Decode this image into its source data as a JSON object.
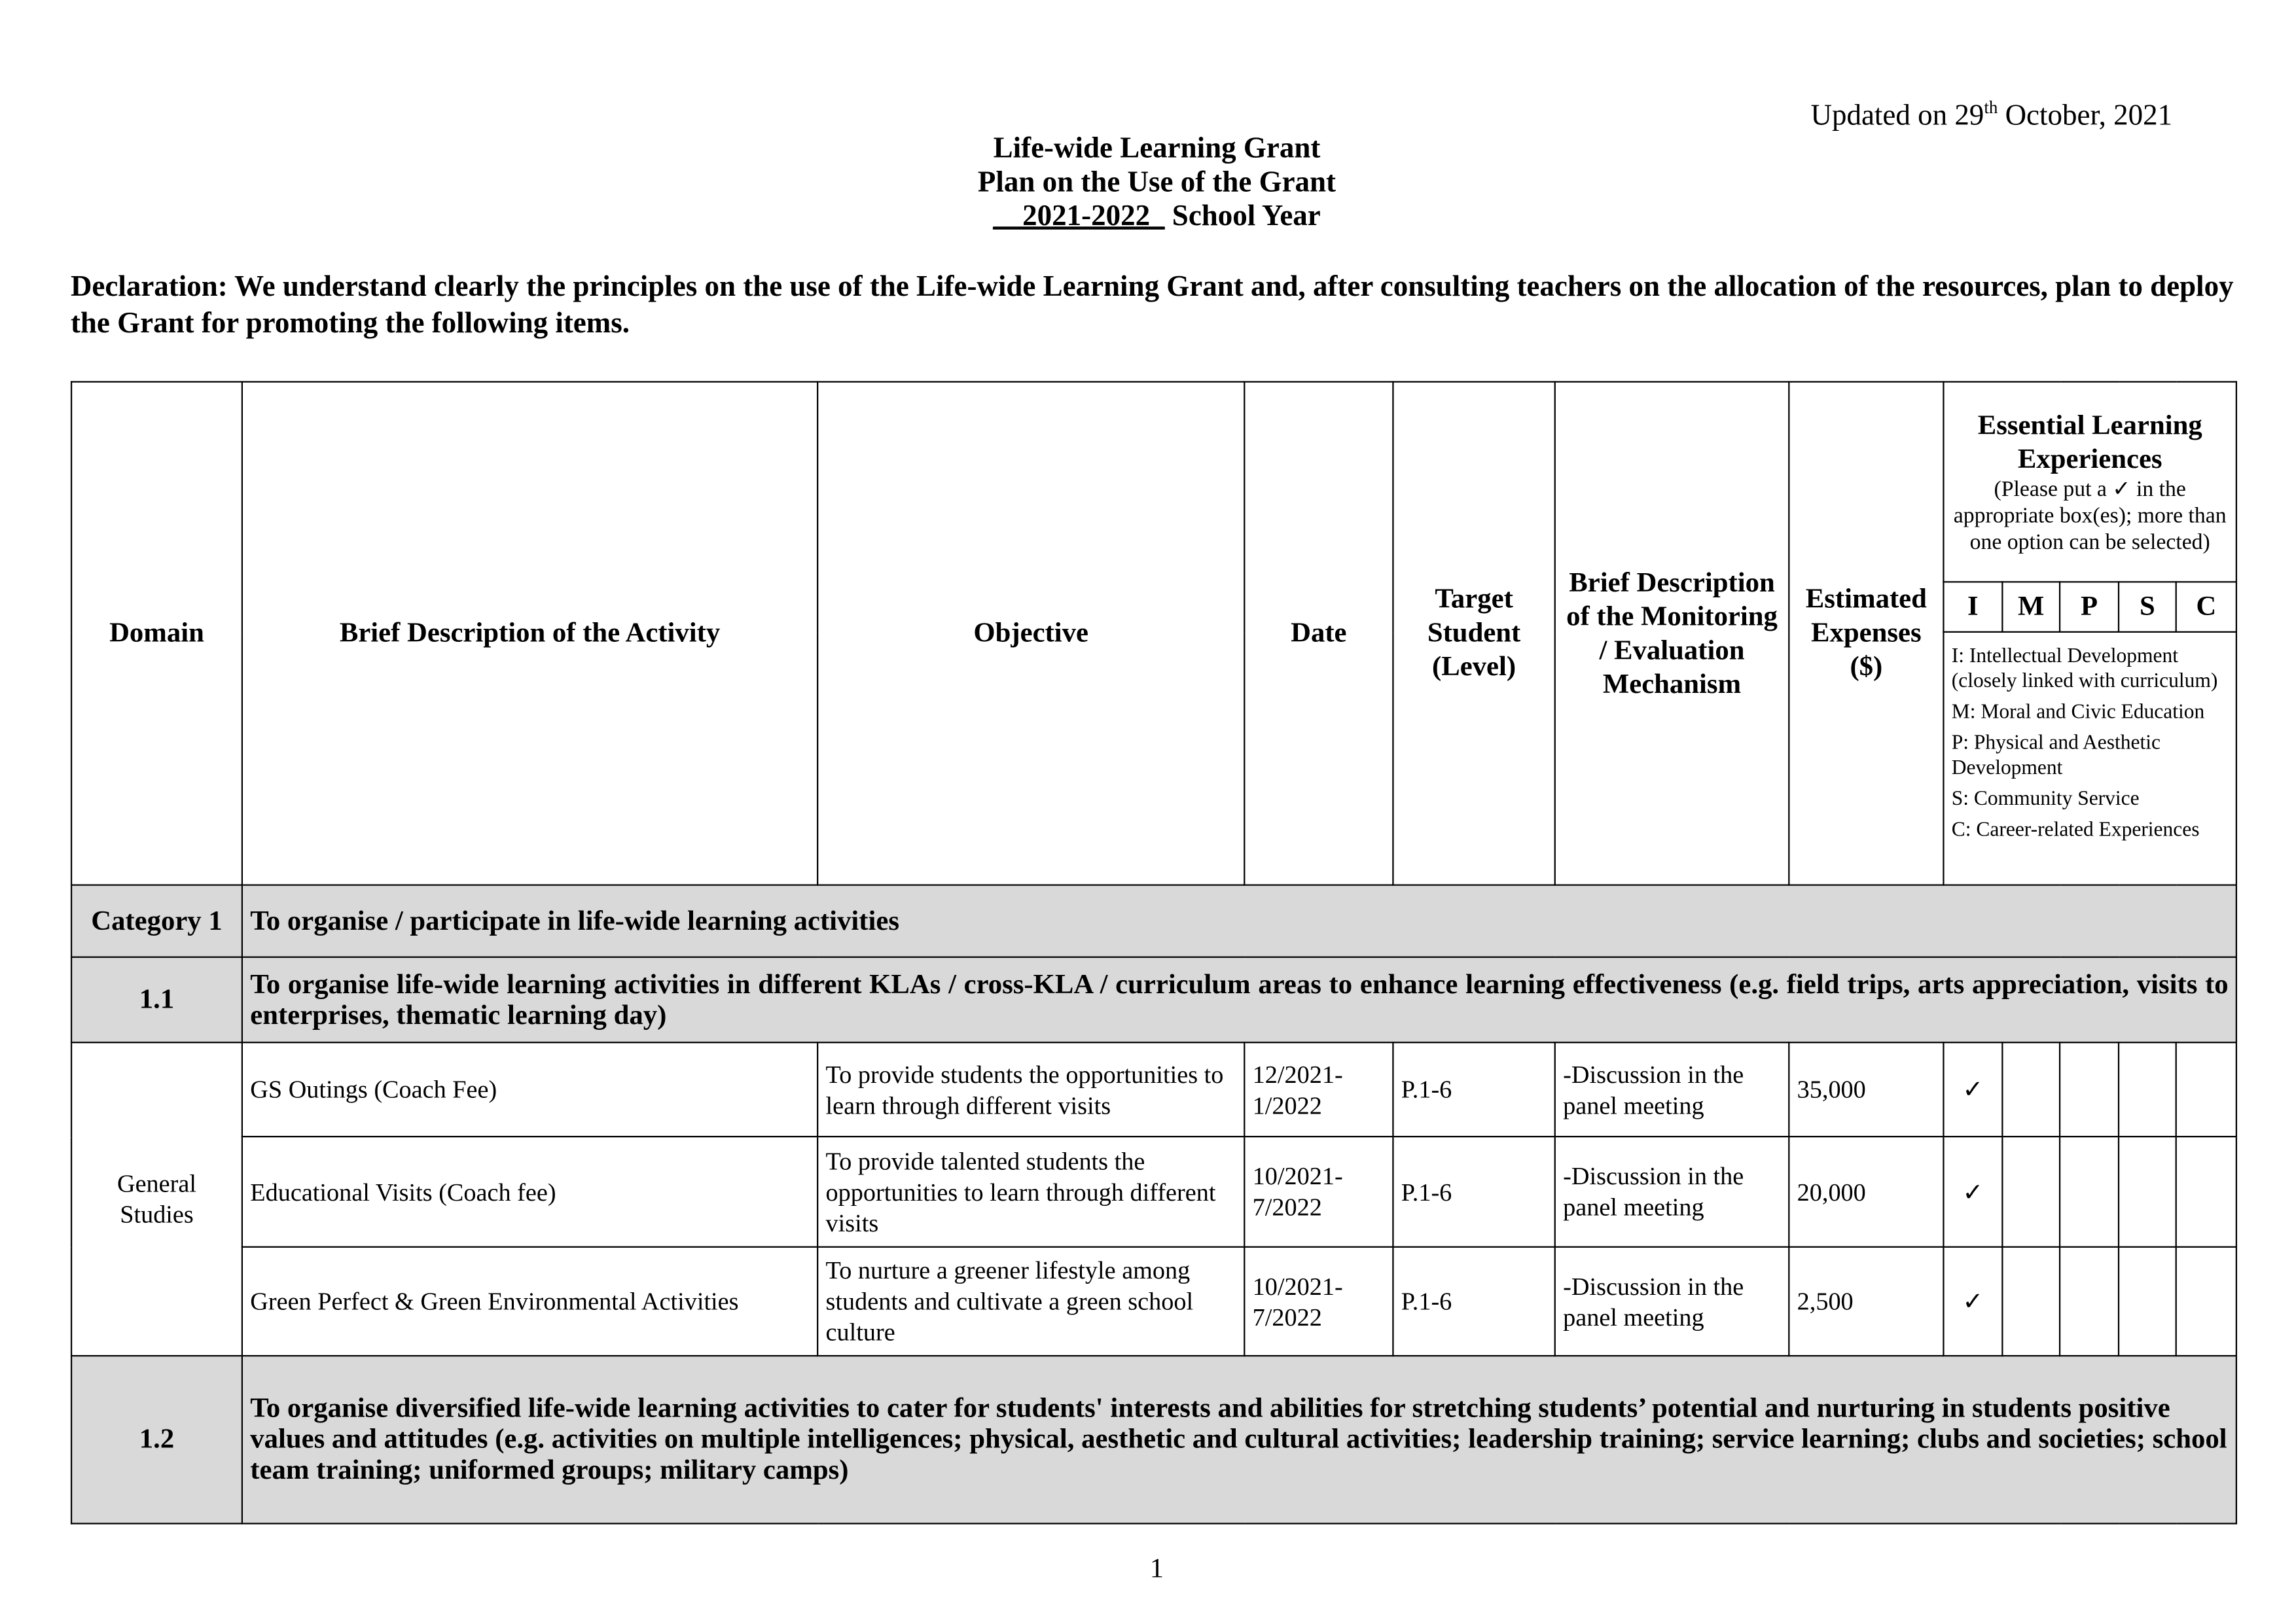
{
  "updated": {
    "prefix": "Updated on 29",
    "sup": "th",
    "suffix": " October, 2021"
  },
  "title": {
    "line1": "Life-wide Learning Grant",
    "line2": "Plan on the Use of the Grant",
    "year": "__2021-2022_",
    "year_suffix": " School Year"
  },
  "declaration": "Declaration: We understand clearly the principles on the use of the Life-wide Learning Grant and, after consulting teachers on the allocation of the resources, plan to deploy the Grant for promoting the following items.",
  "headers": {
    "domain": "Domain",
    "activity": "Brief Description of the Activity",
    "objective": "Objective",
    "date": "Date",
    "target": "Target Student (Level)",
    "monitoring": "Brief Description of the Monitoring / Evaluation Mechanism",
    "expenses": "Estimated Expenses ($)",
    "ele_title": "Essential Learning Experiences",
    "ele_note": "(Please put a ✓ in the appropriate box(es); more than one option can be selected)",
    "ele_cols": [
      "I",
      "M",
      "P",
      "S",
      "C"
    ],
    "legend": [
      "I: Intellectual Development (closely linked with curriculum)",
      "M: Moral and Civic Education",
      "P: Physical and Aesthetic Development",
      "S: Community Service",
      "C: Career-related Experiences"
    ]
  },
  "category": {
    "label": "Category 1",
    "text": "To organise / participate in life-wide learning activities"
  },
  "section_1_1": {
    "label": "1.1",
    "text": "To organise life-wide learning activities in different KLAs / cross-KLA / curriculum areas to enhance learning effectiveness (e.g. field trips, arts appreciation, visits to enterprises, thematic learning day)"
  },
  "domain_name": "General Studies",
  "rows": [
    {
      "activity": "GS Outings (Coach Fee)",
      "objective": "To provide students the opportunities to learn through different visits",
      "date": "12/2021-1/2022",
      "target": "P.1-6",
      "monitoring": "-Discussion in the panel meeting",
      "expenses": "35,000",
      "checks": [
        "✓",
        "",
        "",
        "",
        ""
      ]
    },
    {
      "activity": "Educational Visits (Coach fee)",
      "objective": "To provide talented students the opportunities to learn through different visits",
      "date": "10/2021-7/2022",
      "target": "P.1-6",
      "monitoring": "-Discussion in the panel meeting",
      "expenses": "20,000",
      "checks": [
        "✓",
        "",
        "",
        "",
        ""
      ]
    },
    {
      "activity": "Green Perfect & Green Environmental Activities",
      "objective": "To nurture a greener lifestyle among students and cultivate a green school culture",
      "date": "10/2021-7/2022",
      "target": "P.1-6",
      "monitoring": "-Discussion in the panel meeting",
      "expenses": "2,500",
      "checks": [
        "✓",
        "",
        "",
        "",
        ""
      ]
    }
  ],
  "section_1_2": {
    "label": "1.2",
    "text": "To organise diversified life-wide learning activities to cater for students' interests and abilities for stretching students’ potential and nurturing in students positive values and attitudes (e.g. activities on multiple intelligences; physical, aesthetic and cultural activities; leadership training; service learning; clubs and societies; school team training; uniformed groups; military camps)"
  },
  "page_number": "1"
}
